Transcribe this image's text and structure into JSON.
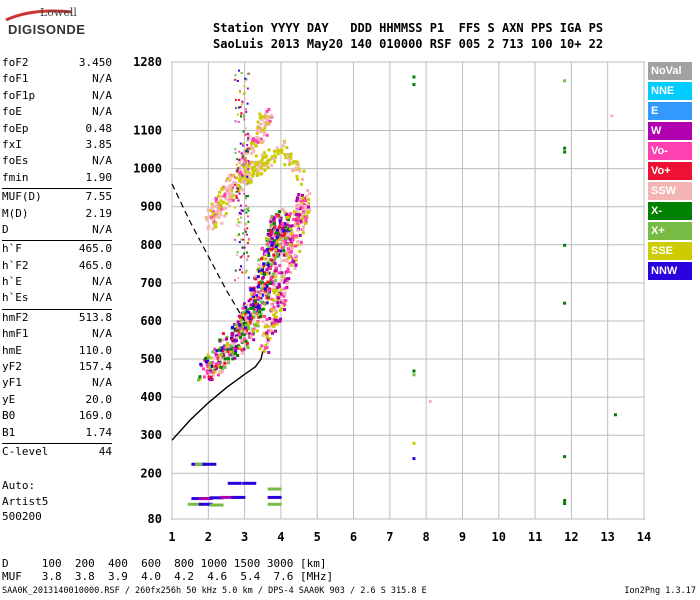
{
  "logo": {
    "top": "Lowell",
    "main": "DIGISONDE"
  },
  "header": {
    "line1": "Station YYYY DAY   DDD HHMMSS P1  FFS S AXN PPS IGA PS",
    "line2": "SaoLuis 2013 May20 140 010000 RSF 005 2 713 100 10+ 22"
  },
  "params": [
    [
      {
        "label": "foF2",
        "value": "3.450"
      },
      {
        "label": "foF1",
        "value": "N/A"
      },
      {
        "label": "foF1p",
        "value": "N/A"
      },
      {
        "label": "foE",
        "value": "N/A"
      },
      {
        "label": "foEp",
        "value": "0.48"
      },
      {
        "label": "fxI",
        "value": "3.85"
      },
      {
        "label": "foEs",
        "value": "N/A"
      },
      {
        "label": "fmin",
        "value": "1.90"
      }
    ],
    [
      {
        "label": "MUF(D)",
        "value": "7.55"
      },
      {
        "label": "M(D)",
        "value": "2.19"
      },
      {
        "label": "D",
        "value": "N/A"
      }
    ],
    [
      {
        "label": "h`F",
        "value": "465.0"
      },
      {
        "label": "h`F2",
        "value": "465.0"
      },
      {
        "label": "h`E",
        "value": "N/A"
      },
      {
        "label": "h`Es",
        "value": "N/A"
      }
    ],
    [
      {
        "label": "hmF2",
        "value": "513.8"
      },
      {
        "label": "hmF1",
        "value": "N/A"
      },
      {
        "label": "hmE",
        "value": "110.0"
      },
      {
        "label": "yF2",
        "value": "157.4"
      },
      {
        "label": "yF1",
        "value": "N/A"
      },
      {
        "label": "yE",
        "value": "20.0"
      },
      {
        "label": "B0",
        "value": "169.0"
      },
      {
        "label": "B1",
        "value": "1.74"
      }
    ],
    [
      {
        "label": "C-level",
        "value": "44"
      }
    ]
  ],
  "auto": {
    "line1": "Auto:",
    "line2": "Artist5",
    "line3": "500200"
  },
  "legend": [
    {
      "label": "NoVal",
      "color": "#a0a0a0"
    },
    {
      "label": "NNE",
      "color": "#00ccff"
    },
    {
      "label": "E",
      "color": "#3399ff"
    },
    {
      "label": "W",
      "color": "#b000b0"
    },
    {
      "label": "Vo-",
      "color": "#ff40b0"
    },
    {
      "label": "Vo+",
      "color": "#ee1133"
    },
    {
      "label": "SSW",
      "color": "#f4b4b4"
    },
    {
      "label": "X-",
      "color": "#008000"
    },
    {
      "label": "X+",
      "color": "#77bb44"
    },
    {
      "label": "SSE",
      "color": "#cccc00"
    },
    {
      "label": "NNW",
      "color": "#2a00dd"
    }
  ],
  "footer": {
    "line1": "D     100  200  400  600  800 1000 1500 3000 [km]",
    "line2": "MUF   3.8  3.8  3.9  4.0  4.2  4.6  5.4  7.6 [MHz]"
  },
  "bottom_line": "SAA0K_2013140010000.RSF / 260fx256h 50 kHz 5.0 km / DPS-4 SAA0K 903 / 2.6 S 315.8 E",
  "version": "Ion2Png 1.3.17",
  "chart_data": {
    "type": "scatter",
    "x_range": [
      1,
      14
    ],
    "y_range": [
      80,
      1280
    ],
    "x_ticks": [
      "1",
      "2",
      "3",
      "4",
      "5",
      "6",
      "7",
      "8",
      "9",
      "10",
      "11",
      "12",
      "13",
      "14"
    ],
    "y_ticks": [
      "80",
      "200",
      "300",
      "400",
      "500",
      "600",
      "700",
      "800",
      "900",
      "1000",
      "1100",
      "1280"
    ],
    "grid": true,
    "profile_curve": [
      [
        1.0,
        287
      ],
      [
        1.5,
        340
      ],
      [
        2.0,
        385
      ],
      [
        2.5,
        425
      ],
      [
        3.0,
        460
      ],
      [
        3.3,
        480
      ],
      [
        3.45,
        500
      ],
      [
        3.5,
        520
      ]
    ],
    "muf_curve": [
      [
        1.0,
        960
      ],
      [
        1.5,
        860
      ],
      [
        2.0,
        770
      ],
      [
        2.5,
        680
      ],
      [
        3.0,
        600
      ]
    ],
    "trace_primary": [
      [
        1.9,
        470
      ],
      [
        2.2,
        500
      ],
      [
        2.5,
        530
      ],
      [
        2.8,
        560
      ],
      [
        3.0,
        590
      ],
      [
        3.2,
        630
      ],
      [
        3.4,
        680
      ],
      [
        3.6,
        740
      ],
      [
        3.8,
        800
      ],
      [
        3.9,
        840
      ],
      [
        4.0,
        870
      ]
    ],
    "trace_secondary": [
      [
        3.5,
        540
      ],
      [
        3.8,
        620
      ],
      [
        4.1,
        720
      ],
      [
        4.3,
        800
      ],
      [
        4.5,
        880
      ],
      [
        4.6,
        920
      ]
    ],
    "trace_upper": [
      [
        2.0,
        860
      ],
      [
        2.3,
        900
      ],
      [
        2.6,
        960
      ],
      [
        3.0,
        1030
      ],
      [
        3.4,
        1100
      ],
      [
        3.6,
        1150
      ]
    ],
    "trace_yellow_mid": [
      [
        2.8,
        960
      ],
      [
        3.2,
        1000
      ],
      [
        3.5,
        1020
      ],
      [
        4.0,
        1060
      ],
      [
        4.5,
        980
      ]
    ],
    "points_low": [
      {
        "x": 1.7,
        "y": 225,
        "color": "#2a00dd"
      },
      {
        "x": 1.8,
        "y": 225,
        "color": "#77bb44"
      },
      {
        "x": 2.0,
        "y": 225,
        "color": "#2a00dd"
      },
      {
        "x": 1.7,
        "y": 135,
        "color": "#2a00dd"
      },
      {
        "x": 1.9,
        "y": 135,
        "color": "#b000b0"
      },
      {
        "x": 2.2,
        "y": 137,
        "color": "#2a00dd"
      },
      {
        "x": 2.5,
        "y": 138,
        "color": "#b000b0"
      },
      {
        "x": 2.8,
        "y": 138,
        "color": "#2a00dd"
      },
      {
        "x": 1.6,
        "y": 120,
        "color": "#77bb44"
      },
      {
        "x": 1.9,
        "y": 120,
        "color": "#2a00dd"
      },
      {
        "x": 2.2,
        "y": 118,
        "color": "#77bb44"
      },
      {
        "x": 2.7,
        "y": 175,
        "color": "#2a00dd"
      },
      {
        "x": 3.1,
        "y": 175,
        "color": "#2a00dd"
      },
      {
        "x": 3.8,
        "y": 160,
        "color": "#77bb44"
      },
      {
        "x": 3.8,
        "y": 138,
        "color": "#2a00dd"
      },
      {
        "x": 3.8,
        "y": 120,
        "color": "#77bb44"
      }
    ],
    "points_sparse": [
      {
        "x": 7.65,
        "y": 1242,
        "color": "#008000"
      },
      {
        "x": 7.65,
        "y": 1222,
        "color": "#008000"
      },
      {
        "x": 7.65,
        "y": 470,
        "color": "#008000"
      },
      {
        "x": 7.65,
        "y": 460,
        "color": "#77bb44"
      },
      {
        "x": 7.65,
        "y": 280,
        "color": "#cccc00"
      },
      {
        "x": 7.65,
        "y": 240,
        "color": "#2a00dd"
      },
      {
        "x": 8.1,
        "y": 390,
        "color": "#f4b4b4"
      },
      {
        "x": 11.8,
        "y": 1232,
        "color": "#77bb44"
      },
      {
        "x": 11.8,
        "y": 1055,
        "color": "#008000"
      },
      {
        "x": 11.8,
        "y": 1045,
        "color": "#008000"
      },
      {
        "x": 11.8,
        "y": 800,
        "color": "#008000"
      },
      {
        "x": 11.8,
        "y": 648,
        "color": "#008000"
      },
      {
        "x": 11.8,
        "y": 245,
        "color": "#008000"
      },
      {
        "x": 11.8,
        "y": 130,
        "color": "#008000"
      },
      {
        "x": 11.8,
        "y": 122,
        "color": "#008000"
      },
      {
        "x": 13.2,
        "y": 355,
        "color": "#008000"
      },
      {
        "x": 13.1,
        "y": 1140,
        "color": "#f4b4b4"
      }
    ]
  }
}
